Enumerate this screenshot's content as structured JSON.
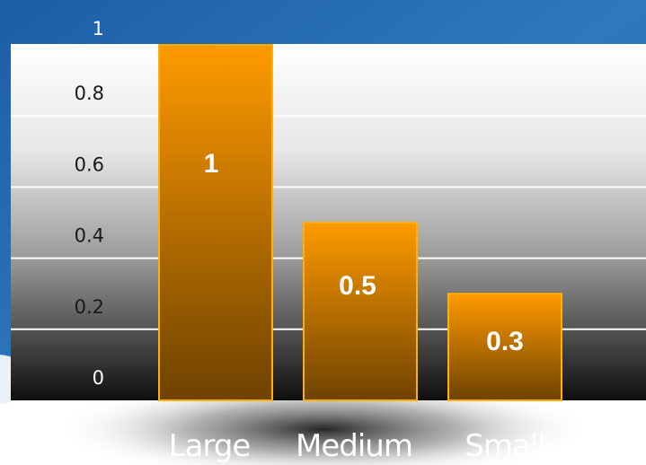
{
  "chart_data": {
    "type": "bar",
    "categories": [
      "Large",
      "Medium",
      "Small"
    ],
    "values": [
      1,
      0.5,
      0.3
    ],
    "data_labels": [
      "1",
      "0.5",
      "0.3"
    ],
    "yticks": [
      "0",
      "0.2",
      "0.4",
      "0.6",
      "0.8",
      "1"
    ],
    "ylim": [
      0,
      1
    ],
    "grid": true,
    "colors": {
      "bar_top": "#ff9900",
      "bar_bottom": "#6b4000",
      "bar_border": "#ffb000",
      "sky": "#1a5ea8"
    }
  }
}
